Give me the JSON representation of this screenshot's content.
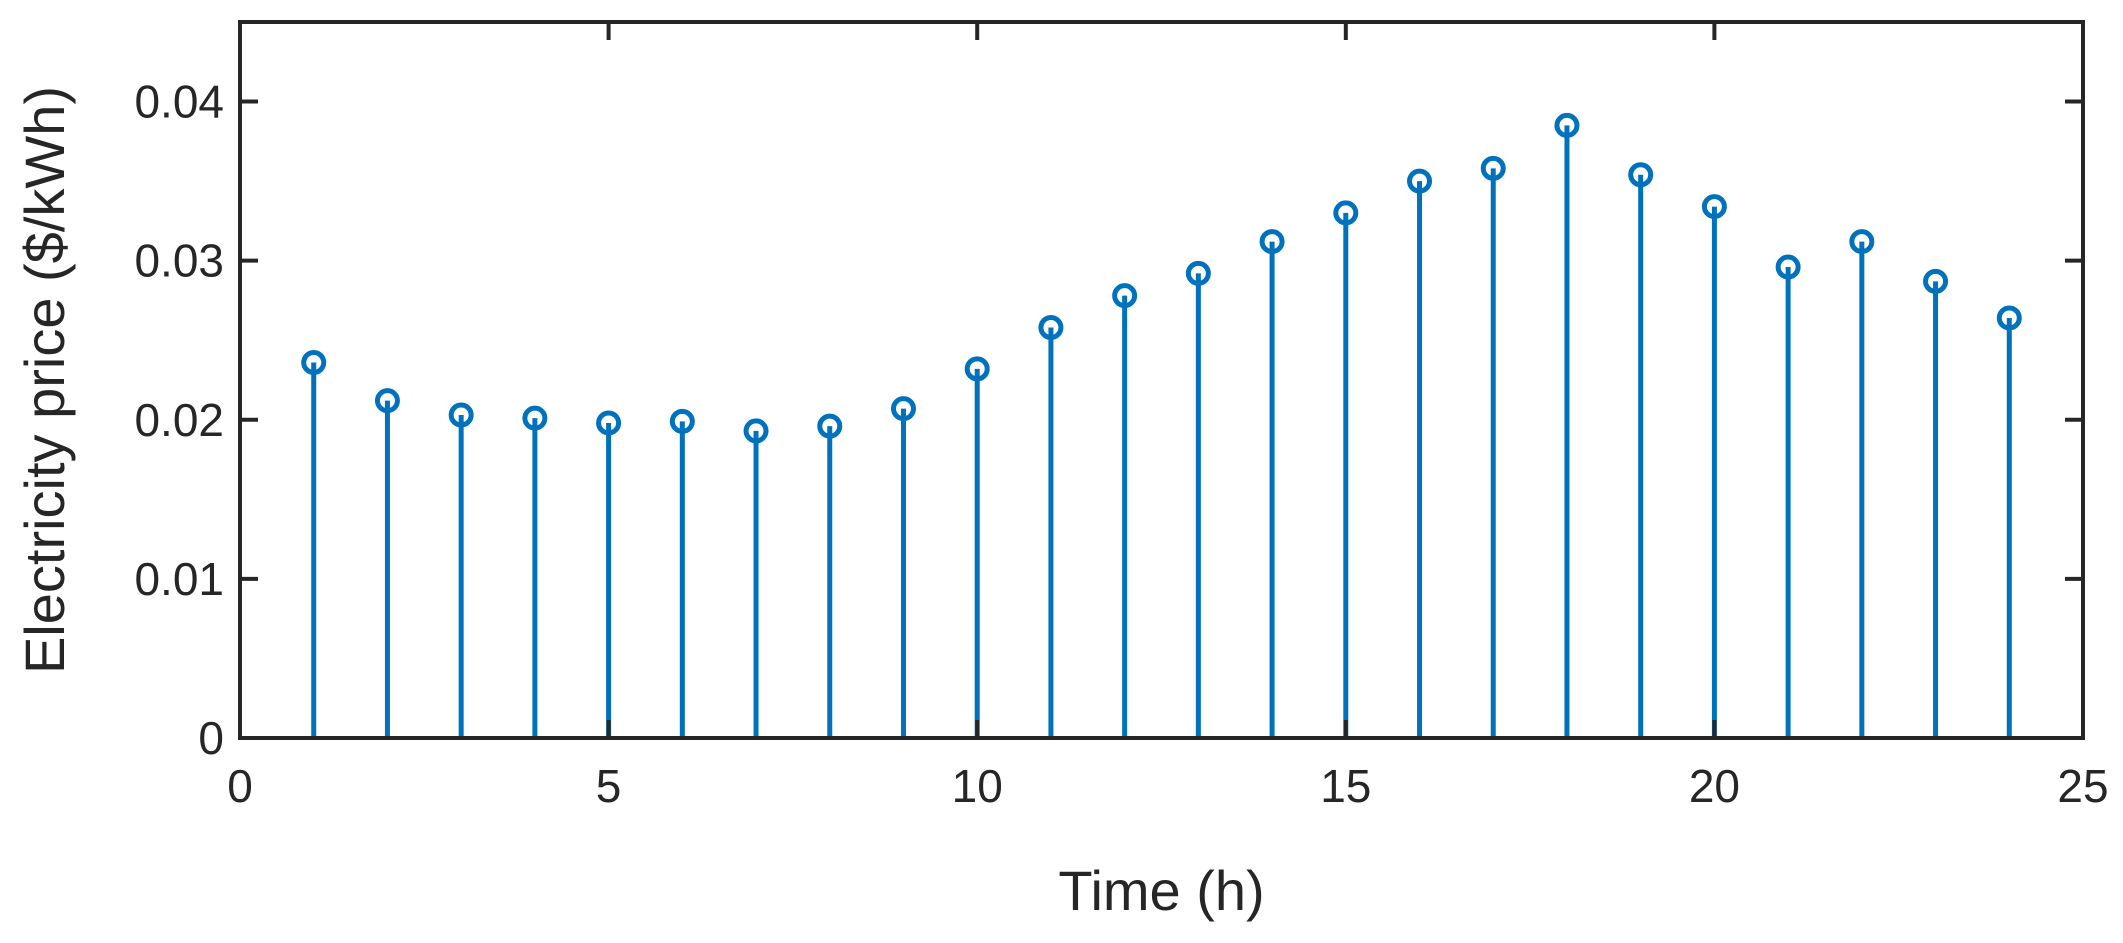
{
  "chart_data": {
    "type": "stem",
    "xlabel": "Time (h)",
    "ylabel": "Electricity price ($/kWh)",
    "xlim": [
      0,
      25
    ],
    "ylim": [
      0,
      0.045
    ],
    "xticks": [
      0,
      5,
      10,
      15,
      20,
      25
    ],
    "yticks": [
      0,
      0.01,
      0.02,
      0.03,
      0.04
    ],
    "xtick_labels": [
      "0",
      "5",
      "10",
      "15",
      "20",
      "25"
    ],
    "ytick_labels": [
      "0",
      "0.01",
      "0.02",
      "0.03",
      "0.04"
    ],
    "grid": false,
    "color": "#0072BD",
    "x": [
      1,
      2,
      3,
      4,
      5,
      6,
      7,
      8,
      9,
      10,
      11,
      12,
      13,
      14,
      15,
      16,
      17,
      18,
      19,
      20,
      21,
      22,
      23,
      24
    ],
    "values": [
      0.0236,
      0.0212,
      0.0203,
      0.0201,
      0.0198,
      0.0199,
      0.0193,
      0.0196,
      0.0207,
      0.0232,
      0.0258,
      0.0278,
      0.0292,
      0.0312,
      0.033,
      0.035,
      0.0358,
      0.0385,
      0.0354,
      0.0334,
      0.0296,
      0.0312,
      0.0287,
      0.0264
    ]
  }
}
